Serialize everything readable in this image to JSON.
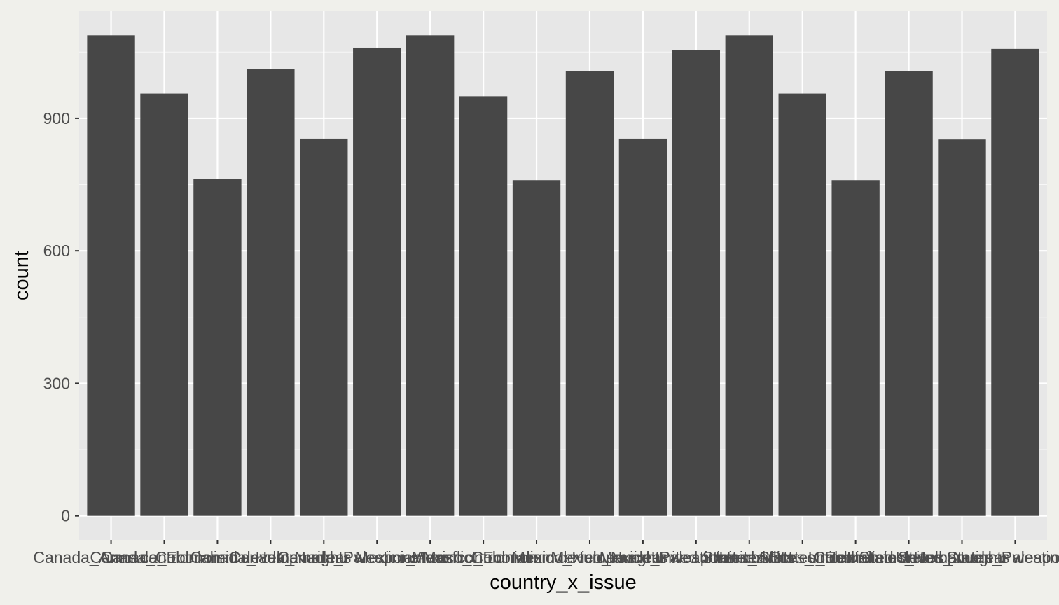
{
  "chart_data": {
    "type": "bar",
    "categories": [
      "Canada_Arms control",
      "Canada_Colonialism",
      "Canada_Economic development",
      "Canada_Human rights",
      "Canada_Nuclear weapons",
      "Canada_Palestinian conflict",
      "Mexico_Arms control",
      "Mexico_Colonialism",
      "Mexico_Economic development",
      "Mexico_Human rights",
      "Mexico_Nuclear weapons",
      "Mexico_Palestinian conflict",
      "United States_Arms control",
      "United States_Colonialism",
      "United States_Economic development",
      "United States_Human rights",
      "United States_Nuclear weapons",
      "United States_Palestinian conflict"
    ],
    "values": [
      1088,
      956,
      762,
      1012,
      854,
      1060,
      1088,
      950,
      760,
      1007,
      854,
      1055,
      1088,
      956,
      760,
      1007,
      852,
      1057
    ],
    "xlabel": "country_x_issue",
    "ylabel": "count",
    "yticks": [
      0,
      300,
      600,
      900
    ],
    "ylim": [
      -54.4,
      1142.4
    ],
    "grid": true,
    "colors": {
      "bar": "#474747",
      "panel": "#e7e7e7",
      "grid": "#ffffff",
      "background": "#f0f0eb",
      "tick_text": "#4d4d4d",
      "tick_mark": "#333333",
      "axis_title": "#000000"
    }
  }
}
